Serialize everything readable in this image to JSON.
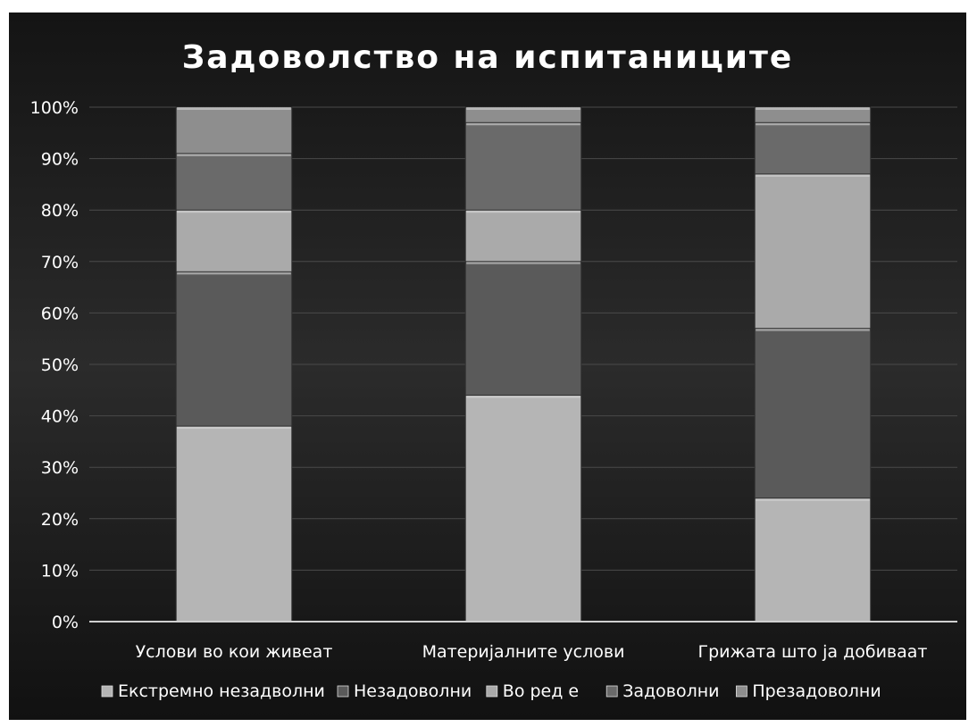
{
  "chart_data": {
    "type": "bar",
    "stacked": true,
    "percent_axis": true,
    "title": "Задоволство на испитаниците",
    "categories": [
      "Услови во кои живеат",
      "Материјалните услови",
      "Грижата што ја добиваат"
    ],
    "series": [
      {
        "name": "Екстремно незадволни",
        "values": [
          38,
          44,
          24
        ],
        "color": "#b5b5b5"
      },
      {
        "name": "Незадоволни",
        "values": [
          30,
          26,
          33
        ],
        "color": "#5a5a5a"
      },
      {
        "name": "Во ред е",
        "values": [
          12,
          10,
          30
        ],
        "color": "#aaaaaa"
      },
      {
        "name": "Задоволни",
        "values": [
          11,
          17,
          10
        ],
        "color": "#6a6a6a"
      },
      {
        "name": "Презадоволни",
        "values": [
          9,
          3,
          3
        ],
        "color": "#8e8e8e"
      }
    ],
    "y_ticks": [
      "0%",
      "10%",
      "20%",
      "30%",
      "40%",
      "50%",
      "60%",
      "70%",
      "80%",
      "90%",
      "100%"
    ],
    "ylim": [
      0,
      100
    ],
    "grid": true,
    "legend_position": "bottom",
    "colors": {
      "background": "#1e1e1e",
      "text": "#ffffff",
      "grid": "#4a4a4a",
      "axis": "#d0d0d0"
    }
  }
}
